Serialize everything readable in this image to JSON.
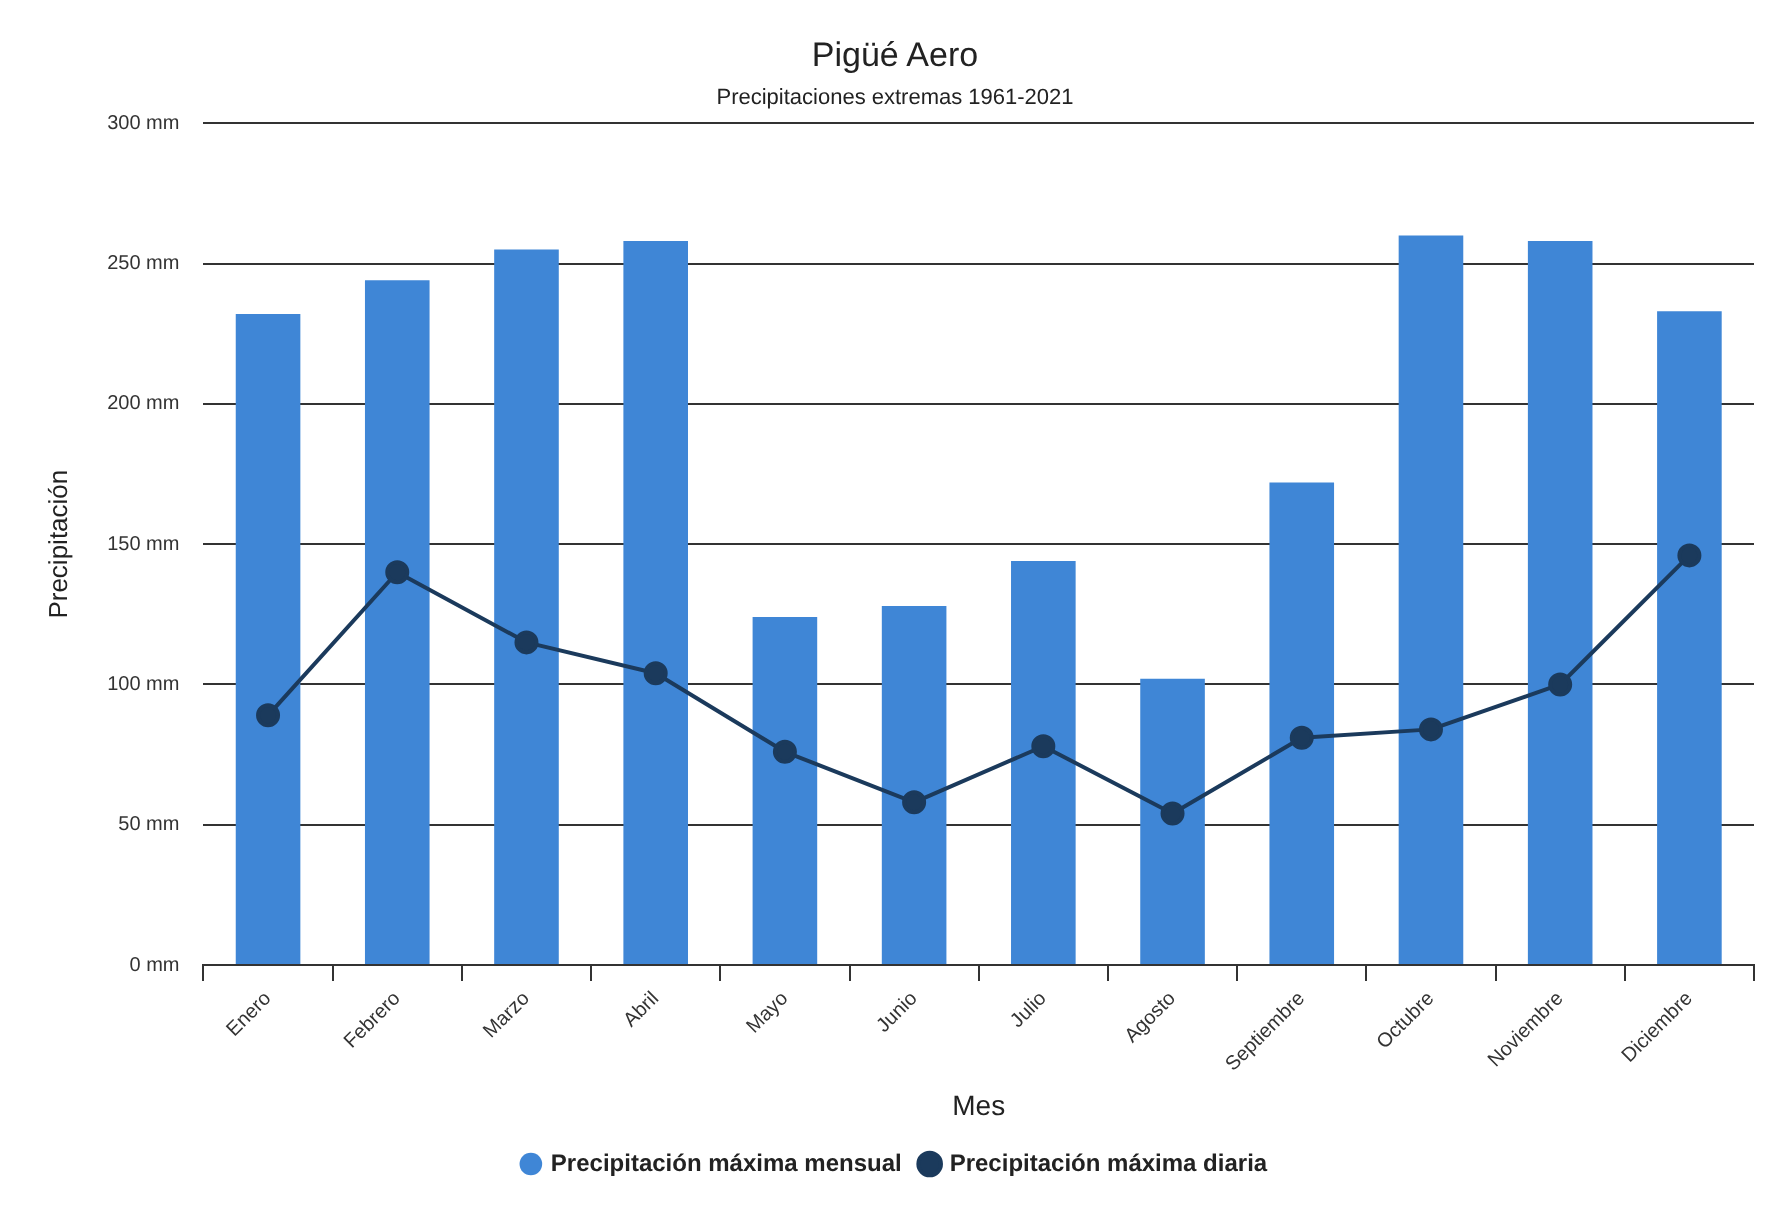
{
  "chart_data": {
    "type": "bar",
    "title": "Pigüé Aero",
    "subtitle": "Precipitaciones extremas 1961-2021",
    "xlabel": "Mes",
    "ylabel": "Precipitación",
    "categories": [
      "Enero",
      "Febrero",
      "Marzo",
      "Abril",
      "Mayo",
      "Junio",
      "Julio",
      "Agosto",
      "Septiembre",
      "Octubre",
      "Noviembre",
      "Diciembre"
    ],
    "series": [
      {
        "name": "Precipitación máxima mensual",
        "color": "#3f86d6",
        "values": [
          232,
          244,
          255,
          258,
          124,
          128,
          144,
          102,
          172,
          260,
          258,
          233
        ]
      },
      {
        "name": "Precipitación máxima diaria",
        "type": "line",
        "color": "#1b3a5c",
        "marker": "circle",
        "values": [
          89,
          140,
          115,
          104,
          76,
          58,
          78,
          54,
          81,
          84,
          100,
          146
        ]
      }
    ],
    "ylim": [
      0,
      300
    ],
    "yticks": [
      {
        "value": 0,
        "label": "0 mm"
      },
      {
        "value": 50,
        "label": "50 mm"
      },
      {
        "value": 100,
        "label": "100 mm"
      },
      {
        "value": 150,
        "label": "150 mm"
      },
      {
        "value": 200,
        "label": "200 mm"
      },
      {
        "value": 250,
        "label": "250 mm"
      },
      {
        "value": 300,
        "label": "300 mm"
      }
    ],
    "grid": "y",
    "legend": "bottom"
  }
}
